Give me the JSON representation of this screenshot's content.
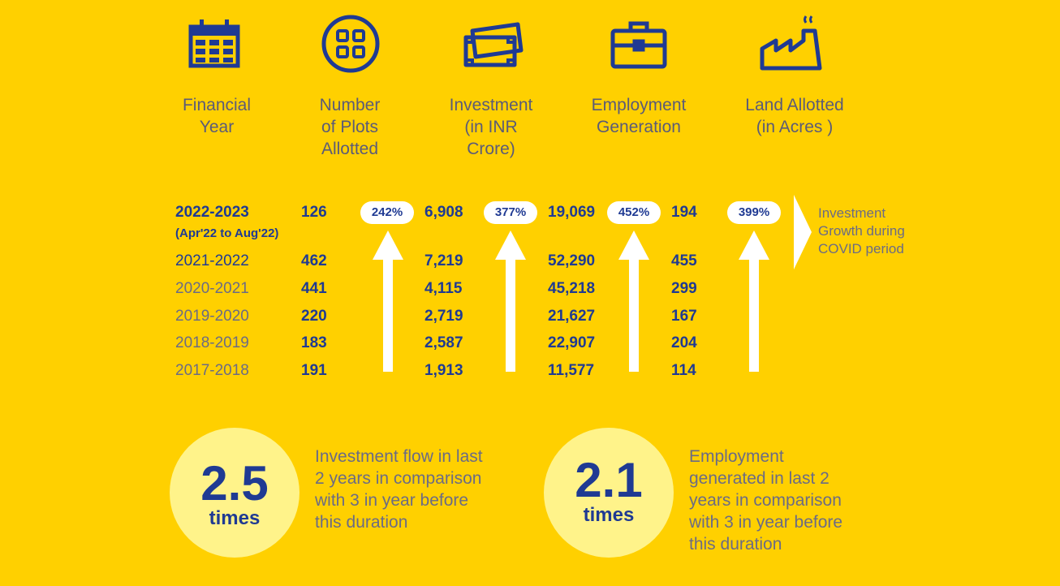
{
  "colors": {
    "background": "#FFD000",
    "accent": "#1F3A93",
    "text": "#5b5b78",
    "circle": "#FFF38A",
    "pill": "#FFFFFF"
  },
  "headers": [
    {
      "label": "Financial\nYear",
      "icon": "calendar-icon"
    },
    {
      "label": "Number\nof Plots\nAllotted",
      "icon": "grid-icon"
    },
    {
      "label": "Investment\n(in INR\nCrore)",
      "icon": "money-icon"
    },
    {
      "label": "Employment\nGeneration",
      "icon": "briefcase-icon"
    },
    {
      "label": "Land Allotted\n(in Acres )",
      "icon": "factory-icon"
    }
  ],
  "chart_data": {
    "type": "table",
    "columns": [
      "Financial Year",
      "Number of Plots Allotted",
      "Investment (in INR Crore)",
      "Employment Generation",
      "Land Allotted (in Acres )"
    ],
    "rows": [
      {
        "year": "2022-2023",
        "note": "(Apr'22 to Aug'22)",
        "plots": "126",
        "investment": "6,908",
        "employment": "19,069",
        "land": "194"
      },
      {
        "year": "2021-2022",
        "plots": "462",
        "investment": "7,219",
        "employment": "52,290",
        "land": "455"
      },
      {
        "year": "2020-2021",
        "plots": "441",
        "investment": "4,115",
        "employment": "45,218",
        "land": "299"
      },
      {
        "year": "2019-2020",
        "plots": "220",
        "investment": "2,719",
        "employment": "21,627",
        "land": "167"
      },
      {
        "year": "2018-2019",
        "plots": "183",
        "investment": "2,587",
        "employment": "22,907",
        "land": "204"
      },
      {
        "year": "2017-2018",
        "plots": "191",
        "investment": "1,913",
        "employment": "11,577",
        "land": "114"
      }
    ],
    "growth": [
      {
        "label": "242%"
      },
      {
        "label": "377%"
      },
      {
        "label": "452%"
      },
      {
        "label": "399%"
      }
    ],
    "growth_note": "Investment\nGrowth during\nCOVID period"
  },
  "stats": [
    {
      "value": "2.5",
      "unit": "times",
      "text": "Investment flow in last\n2 years in comparison\nwith 3 in year before\nthis duration"
    },
    {
      "value": "2.1",
      "unit": "times",
      "text": "Employment\ngenerated in last 2\nyears in comparison\nwith 3 in year before\nthis duration"
    }
  ]
}
